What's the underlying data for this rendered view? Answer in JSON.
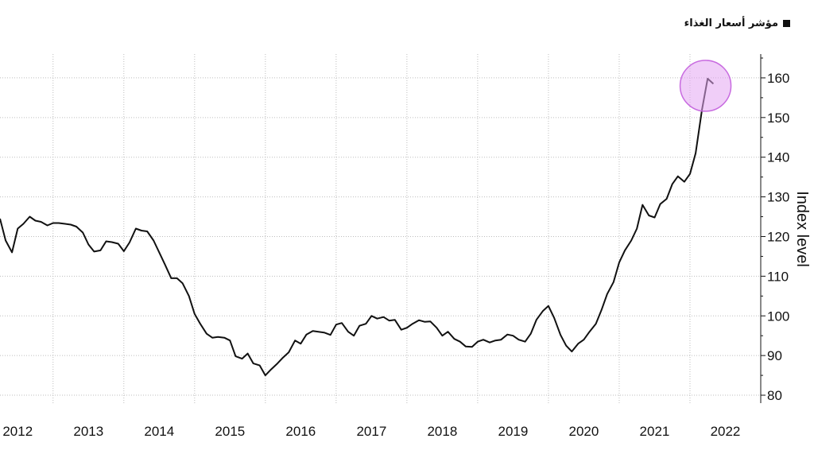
{
  "legend": {
    "label": "مؤشر أسعار الغذاء",
    "icon": "square-icon"
  },
  "chart_data": {
    "type": "line",
    "ylabel": "Index level",
    "xlabel": "",
    "ylim": [
      78,
      166
    ],
    "xlim": [
      2011.75,
      2022.5
    ],
    "y_ticks": [
      80,
      90,
      100,
      110,
      120,
      130,
      140,
      150,
      160
    ],
    "x_ticks": [
      2012,
      2013,
      2014,
      2015,
      2016,
      2017,
      2018,
      2019,
      2020,
      2021,
      2022
    ],
    "grid": true,
    "line_color": "#111111",
    "highlight_color": "#e3a6f2",
    "series": [
      {
        "points": [
          [
            2011.75,
            124.5
          ],
          [
            2011.83,
            119.0
          ],
          [
            2011.92,
            116.0
          ],
          [
            2012.0,
            122.0
          ],
          [
            2012.08,
            123.2
          ],
          [
            2012.17,
            125.0
          ],
          [
            2012.25,
            124.0
          ],
          [
            2012.33,
            123.7
          ],
          [
            2012.42,
            122.8
          ],
          [
            2012.5,
            123.4
          ],
          [
            2012.58,
            123.4
          ],
          [
            2012.67,
            123.2
          ],
          [
            2012.75,
            123.0
          ],
          [
            2012.83,
            122.5
          ],
          [
            2012.92,
            121.0
          ],
          [
            2013.0,
            118.0
          ],
          [
            2013.08,
            116.2
          ],
          [
            2013.17,
            116.5
          ],
          [
            2013.25,
            118.8
          ],
          [
            2013.33,
            118.6
          ],
          [
            2013.42,
            118.2
          ],
          [
            2013.5,
            116.3
          ],
          [
            2013.58,
            118.5
          ],
          [
            2013.67,
            122.0
          ],
          [
            2013.75,
            121.5
          ],
          [
            2013.83,
            121.3
          ],
          [
            2013.92,
            119.0
          ],
          [
            2014.0,
            116.0
          ],
          [
            2014.08,
            113.0
          ],
          [
            2014.17,
            109.5
          ],
          [
            2014.25,
            109.5
          ],
          [
            2014.33,
            108.2
          ],
          [
            2014.42,
            105.0
          ],
          [
            2014.5,
            100.5
          ],
          [
            2014.58,
            98.0
          ],
          [
            2014.67,
            95.5
          ],
          [
            2014.75,
            94.5
          ],
          [
            2014.83,
            94.7
          ],
          [
            2014.92,
            94.5
          ],
          [
            2015.0,
            93.8
          ],
          [
            2015.08,
            89.8
          ],
          [
            2015.17,
            89.2
          ],
          [
            2015.25,
            90.5
          ],
          [
            2015.33,
            88.0
          ],
          [
            2015.42,
            87.5
          ],
          [
            2015.5,
            85.0
          ],
          [
            2015.58,
            86.5
          ],
          [
            2015.67,
            88.0
          ],
          [
            2015.75,
            89.5
          ],
          [
            2015.83,
            90.8
          ],
          [
            2015.92,
            93.8
          ],
          [
            2016.0,
            93.0
          ],
          [
            2016.08,
            95.3
          ],
          [
            2016.17,
            96.2
          ],
          [
            2016.25,
            96.0
          ],
          [
            2016.33,
            95.8
          ],
          [
            2016.42,
            95.2
          ],
          [
            2016.5,
            97.8
          ],
          [
            2016.58,
            98.2
          ],
          [
            2016.67,
            96.0
          ],
          [
            2016.75,
            95.0
          ],
          [
            2016.83,
            97.5
          ],
          [
            2016.92,
            98.0
          ],
          [
            2017.0,
            100.0
          ],
          [
            2017.08,
            99.3
          ],
          [
            2017.17,
            99.7
          ],
          [
            2017.25,
            98.8
          ],
          [
            2017.33,
            99.0
          ],
          [
            2017.42,
            96.5
          ],
          [
            2017.5,
            97.0
          ],
          [
            2017.58,
            98.0
          ],
          [
            2017.67,
            98.9
          ],
          [
            2017.75,
            98.5
          ],
          [
            2017.83,
            98.6
          ],
          [
            2017.92,
            97.0
          ],
          [
            2018.0,
            95.0
          ],
          [
            2018.08,
            96.0
          ],
          [
            2018.17,
            94.2
          ],
          [
            2018.25,
            93.5
          ],
          [
            2018.33,
            92.3
          ],
          [
            2018.42,
            92.2
          ],
          [
            2018.5,
            93.5
          ],
          [
            2018.58,
            94.0
          ],
          [
            2018.67,
            93.3
          ],
          [
            2018.75,
            93.8
          ],
          [
            2018.83,
            94.0
          ],
          [
            2018.92,
            95.3
          ],
          [
            2019.0,
            95.0
          ],
          [
            2019.08,
            94.0
          ],
          [
            2019.17,
            93.5
          ],
          [
            2019.25,
            95.5
          ],
          [
            2019.33,
            99.0
          ],
          [
            2019.42,
            101.2
          ],
          [
            2019.5,
            102.5
          ],
          [
            2019.58,
            99.5
          ],
          [
            2019.67,
            95.2
          ],
          [
            2019.75,
            92.5
          ],
          [
            2019.83,
            91.0
          ],
          [
            2019.92,
            93.0
          ],
          [
            2020.0,
            94.0
          ],
          [
            2020.08,
            96.0
          ],
          [
            2020.17,
            98.0
          ],
          [
            2020.25,
            101.5
          ],
          [
            2020.33,
            105.5
          ],
          [
            2020.42,
            108.5
          ],
          [
            2020.5,
            113.5
          ],
          [
            2020.58,
            116.5
          ],
          [
            2020.67,
            119.0
          ],
          [
            2020.75,
            122.0
          ],
          [
            2020.83,
            128.0
          ],
          [
            2020.92,
            125.3
          ],
          [
            2021.0,
            124.8
          ],
          [
            2021.08,
            128.2
          ],
          [
            2021.17,
            129.5
          ],
          [
            2021.25,
            133.2
          ],
          [
            2021.33,
            135.2
          ],
          [
            2021.42,
            133.8
          ],
          [
            2021.5,
            135.8
          ],
          [
            2021.58,
            141.0
          ],
          [
            2021.67,
            152.0
          ],
          [
            2021.75,
            159.8
          ],
          [
            2021.83,
            158.5
          ]
        ]
      }
    ],
    "highlight": {
      "x": 2021.72,
      "y": 158.0
    }
  }
}
